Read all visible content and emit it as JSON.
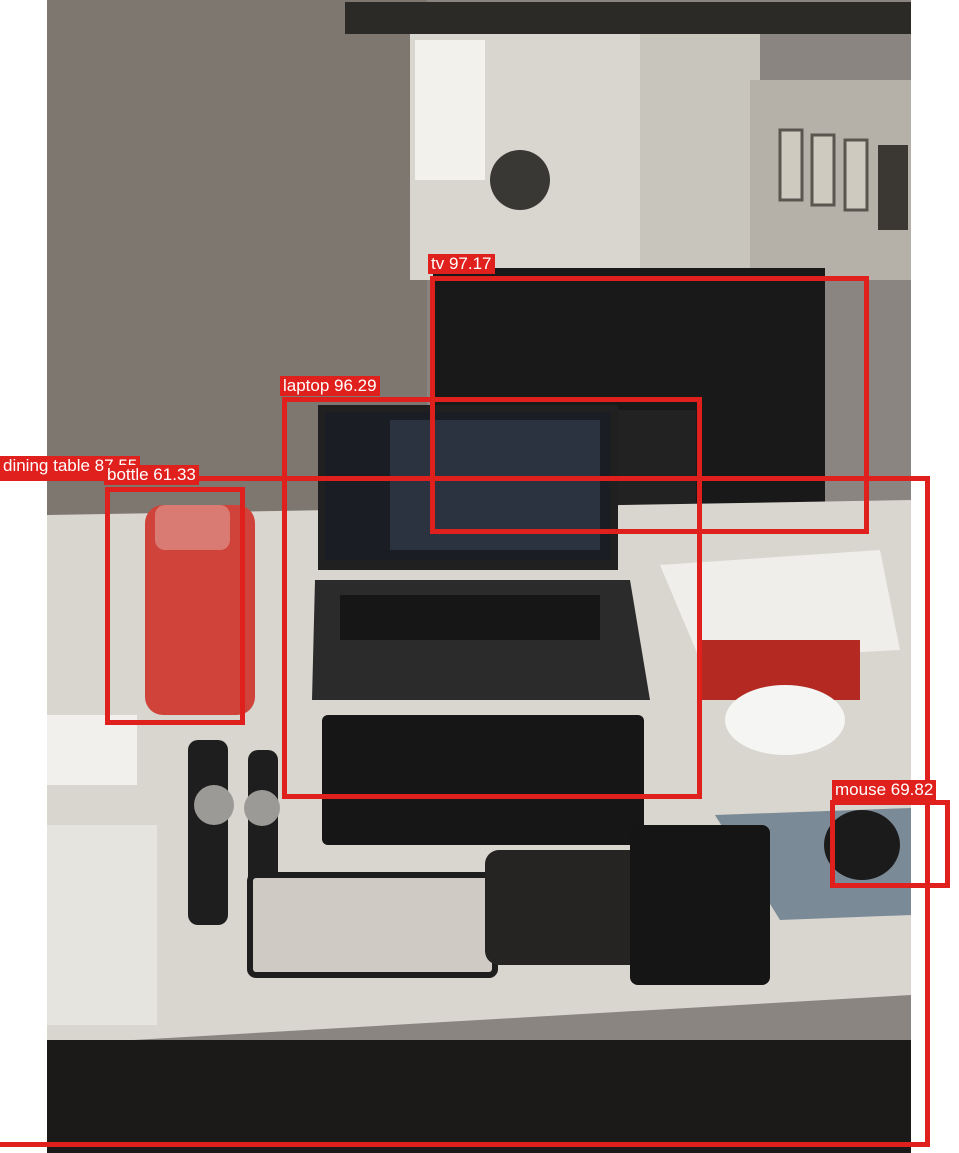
{
  "detections": [
    {
      "id": "tv",
      "label": "tv 97.17",
      "class": "tv",
      "score": 97.17
    },
    {
      "id": "laptop",
      "label": "laptop 96.29",
      "class": "laptop",
      "score": 96.29
    },
    {
      "id": "dining-table",
      "label": "dining table 87.55",
      "class": "dining table",
      "score": 87.55
    },
    {
      "id": "bottle",
      "label": "bottle 61.33",
      "class": "bottle",
      "score": 61.33
    },
    {
      "id": "mouse",
      "label": "mouse 69.82",
      "class": "mouse",
      "score": 69.82
    }
  ],
  "colors": {
    "box": "#e0201c",
    "label_text": "#ffffff"
  }
}
